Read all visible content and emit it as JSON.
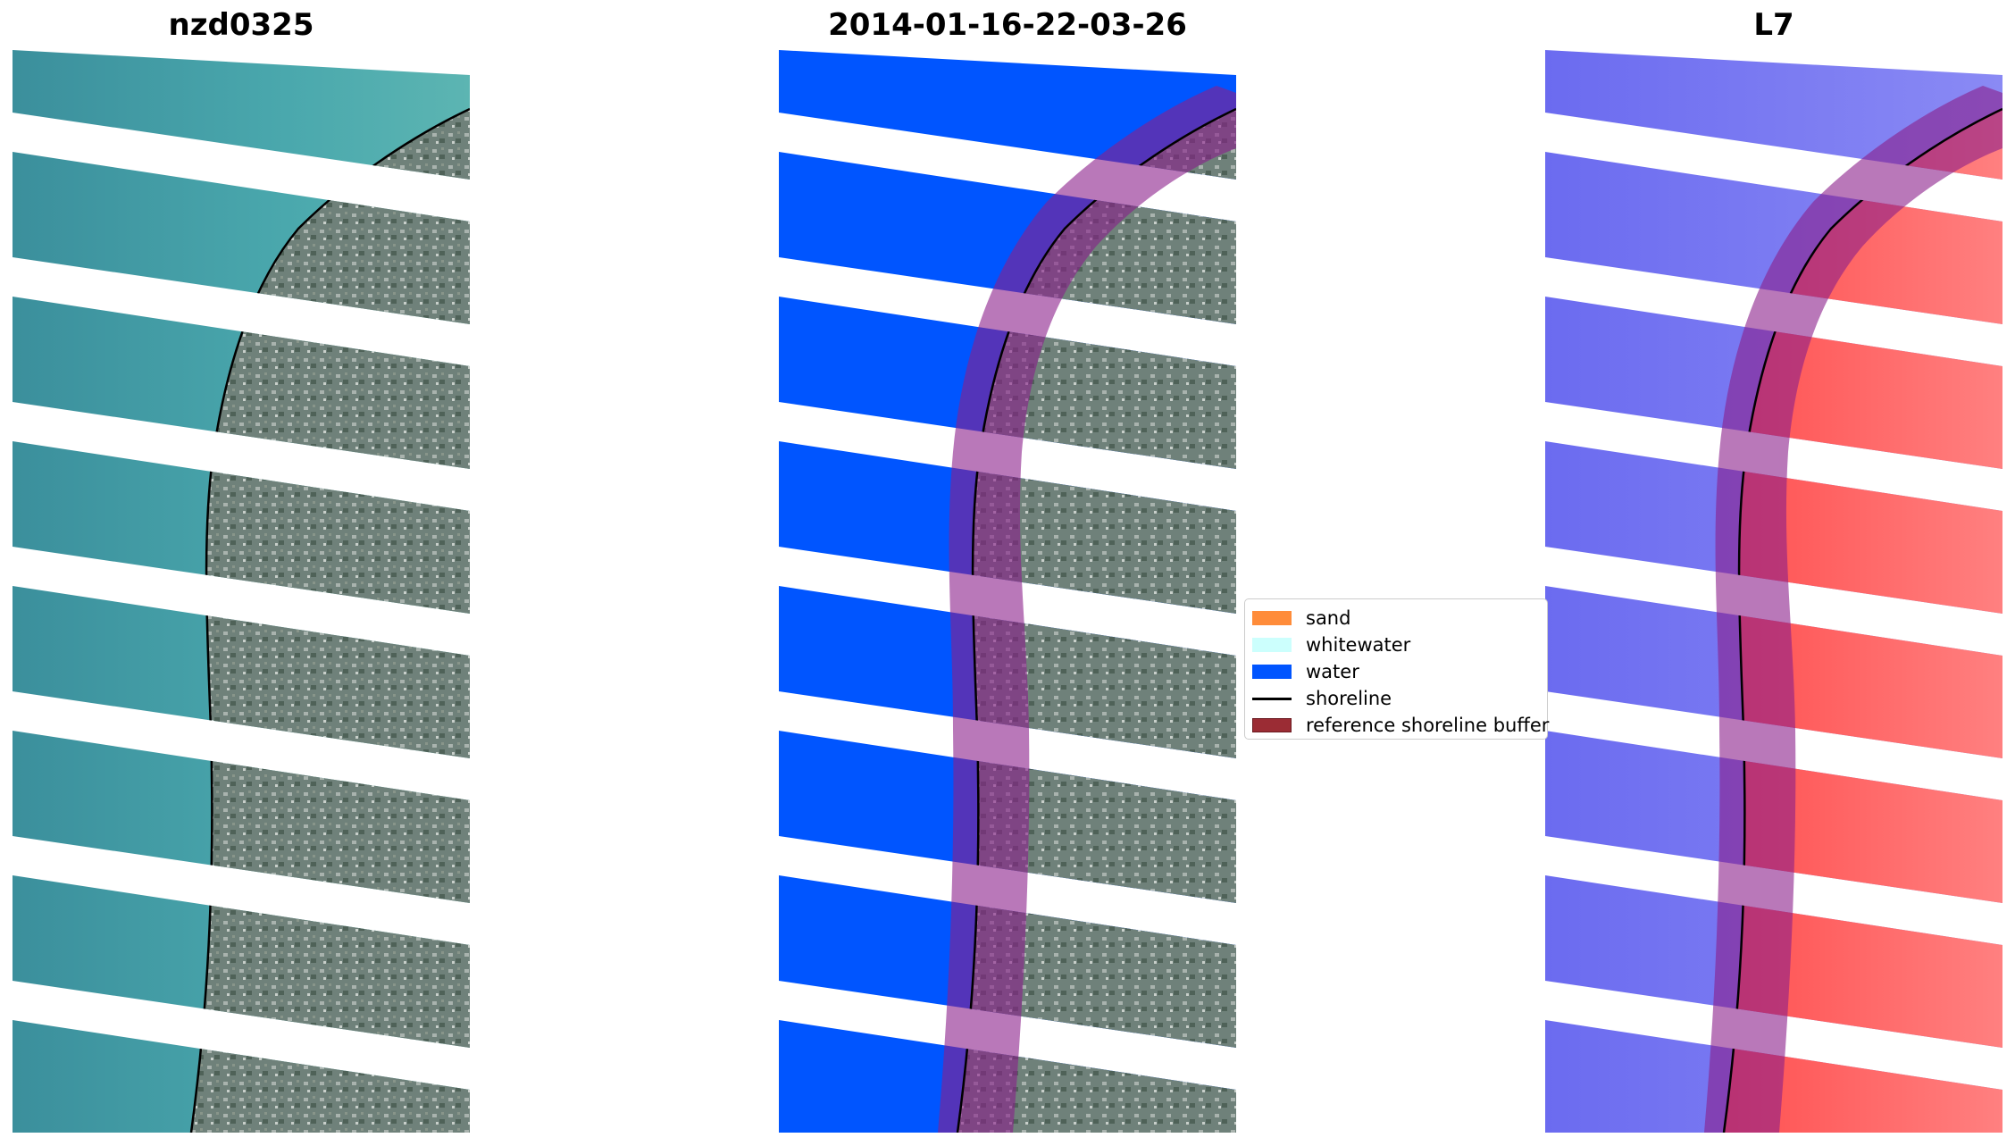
{
  "panels": [
    {
      "title": "nzd0325"
    },
    {
      "title": "2014-01-16-22-03-26"
    },
    {
      "title": "L7"
    }
  ],
  "legend": {
    "items": [
      {
        "label": "sand",
        "color": "#ff8c3a",
        "kind": "patch"
      },
      {
        "label": "whitewater",
        "color": "#ccfffd",
        "kind": "patch"
      },
      {
        "label": "water",
        "color": "#0055ff",
        "kind": "patch"
      },
      {
        "label": "shoreline",
        "color": "#000000",
        "kind": "line"
      },
      {
        "label": "reference shoreline buffer",
        "color": "#9b2c34",
        "kind": "patch"
      }
    ]
  },
  "colors": {
    "ocean": "#3a9aa5",
    "land": "#6a7f78",
    "water_class": "#0055ff",
    "buffer": "#8b1e8b",
    "blue_index": "#6f6ff0",
    "red_index": "#ff4040"
  },
  "icons": {
    "rgb_image": "satellite-rgb-image",
    "classified_image": "classified-image",
    "index_image": "water-index-image"
  }
}
